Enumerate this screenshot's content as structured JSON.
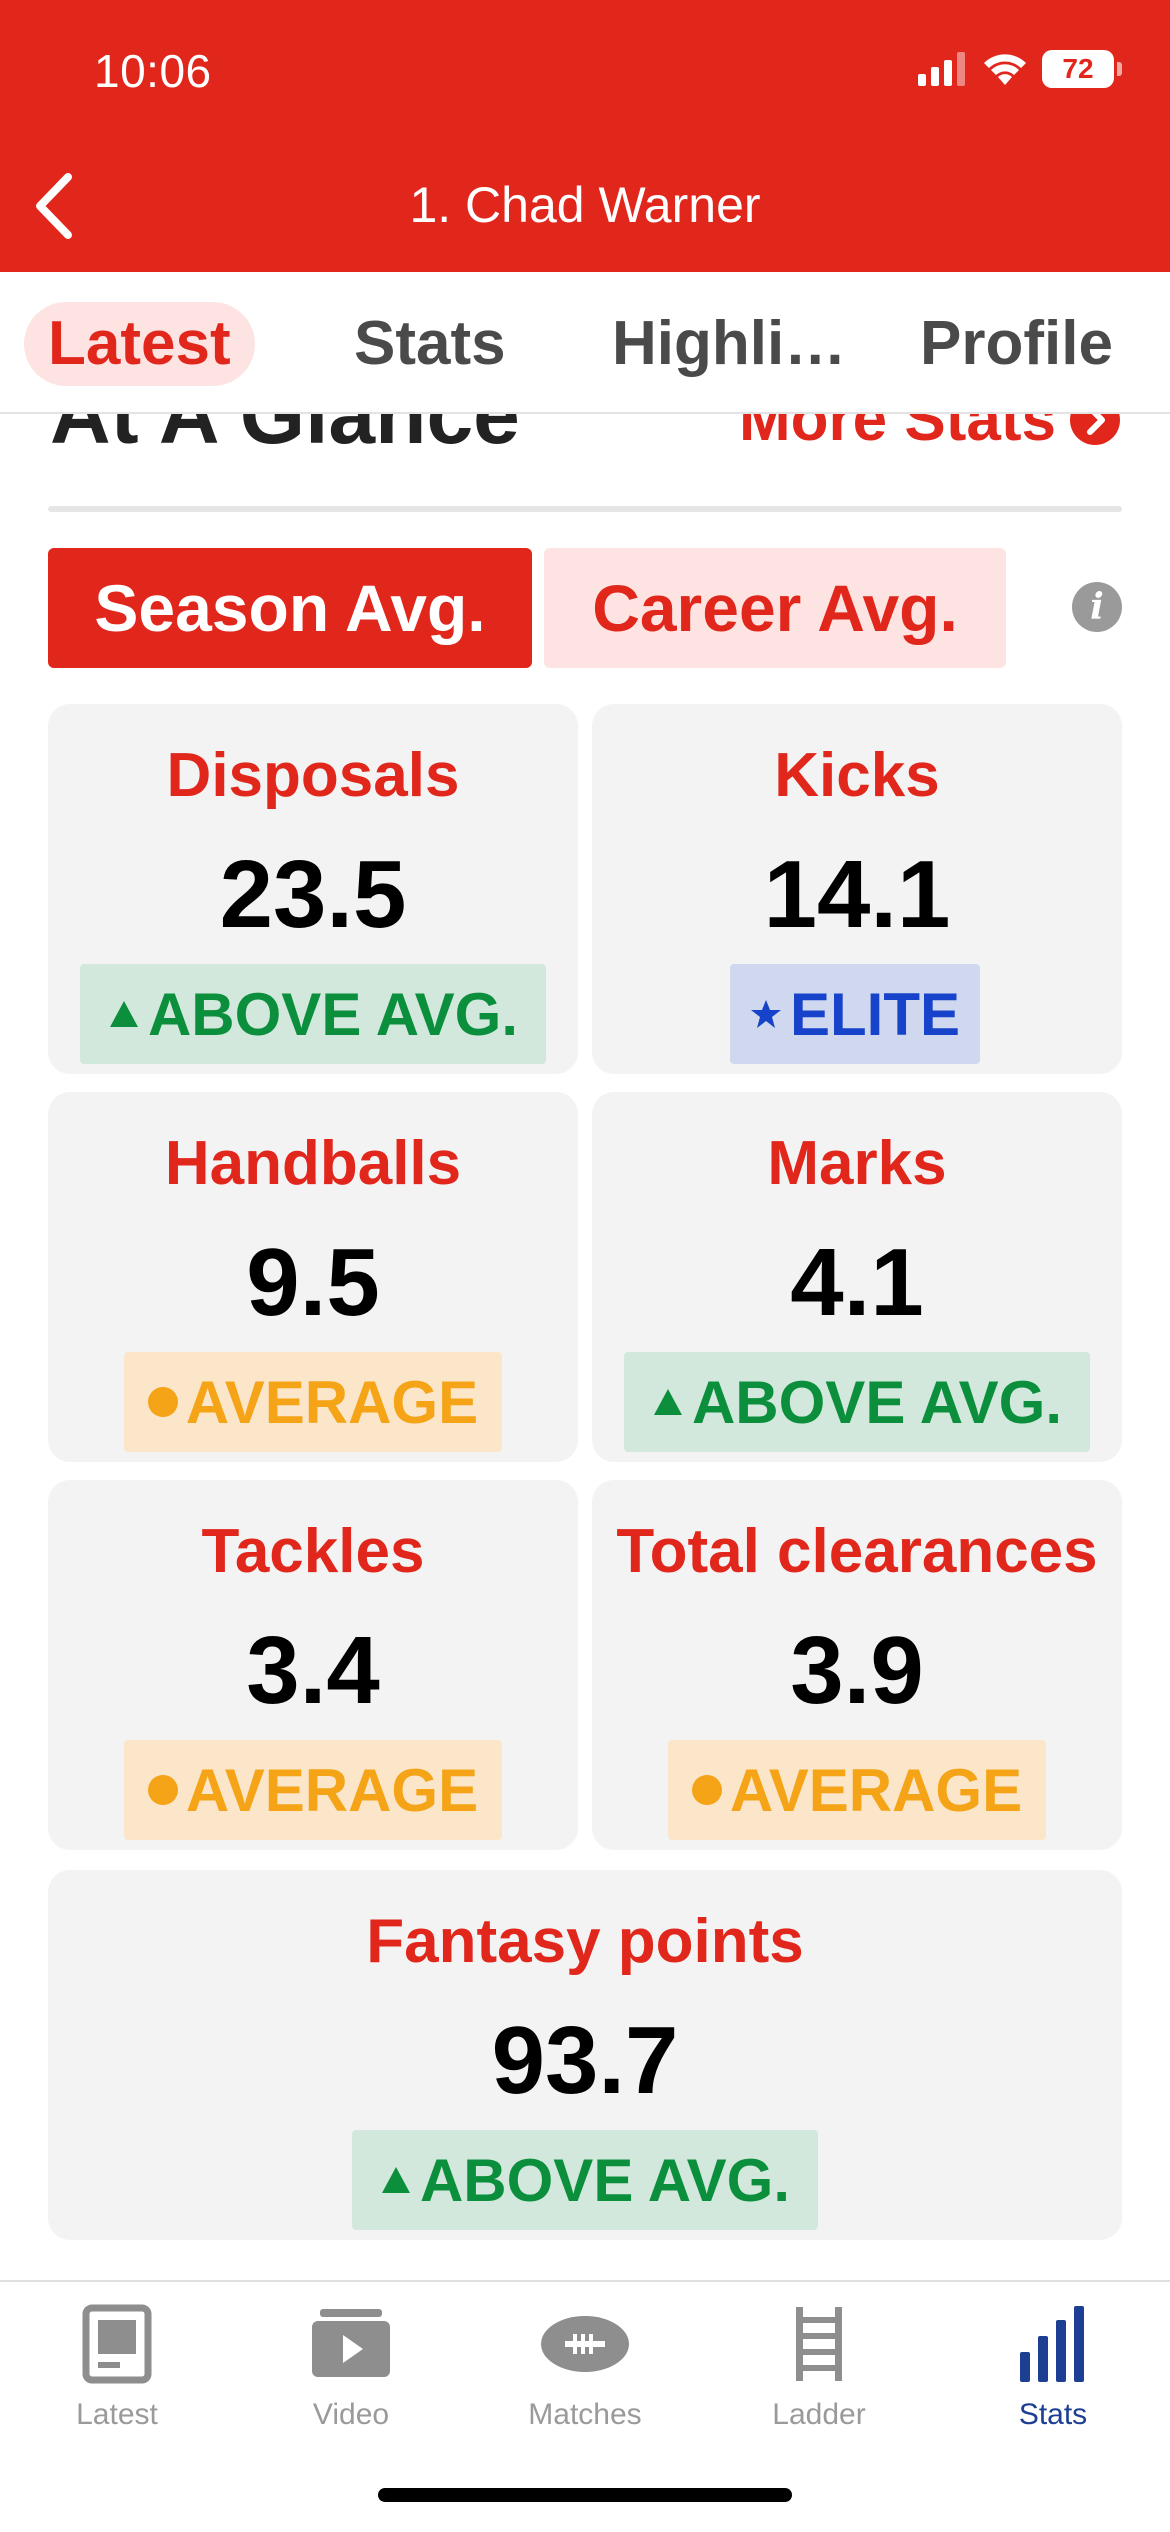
{
  "status_bar": {
    "time": "10:06",
    "battery": "72"
  },
  "header": {
    "title": "1. Chad Warner"
  },
  "tabs": [
    {
      "label": "Latest"
    },
    {
      "label": "Stats"
    },
    {
      "label": "Highli…"
    },
    {
      "label": "Profile"
    }
  ],
  "section": {
    "title": "At A Glance",
    "more_link": "More Stats"
  },
  "toggle": {
    "season": "Season Avg.",
    "career": "Career Avg.",
    "info_icon": "info-icon"
  },
  "stats": [
    {
      "label": "Disposals",
      "value": "23.5",
      "badge": "ABOVE AVG.",
      "badge_type": "above"
    },
    {
      "label": "Kicks",
      "value": "14.1",
      "badge": "ELITE",
      "badge_type": "elite"
    },
    {
      "label": "Handballs",
      "value": "9.5",
      "badge": "AVERAGE",
      "badge_type": "average"
    },
    {
      "label": "Marks",
      "value": "4.1",
      "badge": "ABOVE AVG.",
      "badge_type": "above"
    },
    {
      "label": "Tackles",
      "value": "3.4",
      "badge": "AVERAGE",
      "badge_type": "average"
    },
    {
      "label": "Total clearances",
      "value": "3.9",
      "badge": "AVERAGE",
      "badge_type": "average"
    },
    {
      "label": "Fantasy points",
      "value": "93.7",
      "badge": "ABOVE AVG.",
      "badge_type": "above"
    }
  ],
  "bottom_nav": [
    {
      "label": "Latest",
      "icon": "tablet-icon"
    },
    {
      "label": "Video",
      "icon": "video-play-icon"
    },
    {
      "label": "Matches",
      "icon": "football-icon"
    },
    {
      "label": "Ladder",
      "icon": "ladder-icon"
    },
    {
      "label": "Stats",
      "icon": "bar-chart-icon",
      "active": true
    }
  ],
  "colors": {
    "brand_red": "#e1261c",
    "above_green": "#0c8f3c",
    "average_orange": "#f6a417",
    "elite_blue": "#1643c9",
    "nav_active": "#1c3f94"
  }
}
